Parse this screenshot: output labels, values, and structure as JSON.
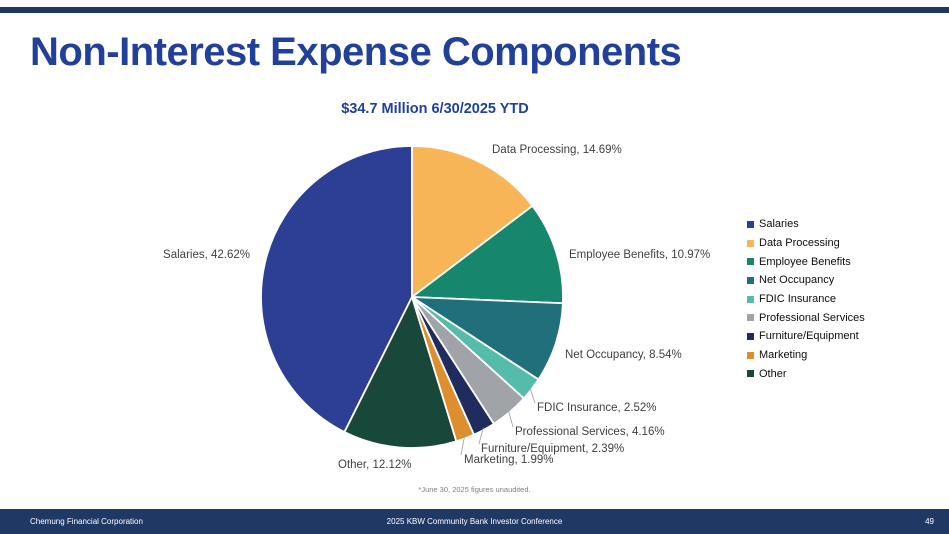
{
  "slide": {
    "title": "Non-Interest Expense Components",
    "subtitle": "$34.7 Million 6/30/2025 YTD",
    "footnote": "*June 30, 2025 figures unaudited.",
    "footer": {
      "left": "Chemung Financial Corporation",
      "center": "2025 KBW Community Bank Investor Conference",
      "page_number": "49"
    },
    "colors": {
      "accent_blue": "#21409A",
      "bar_navy": "#1F3864"
    }
  },
  "chart_data": {
    "type": "pie",
    "title": "$34.7 Million 6/30/2025 YTD",
    "units": "percent",
    "start_angle_deg": 206.57,
    "direction": "clockwise",
    "legend_position": "right",
    "label_format": "{name}, {value}%",
    "slices": [
      {
        "name": "Salaries",
        "value": 42.62,
        "color": "#2C3F94"
      },
      {
        "name": "Data Processing",
        "value": 14.69,
        "color": "#F7B557"
      },
      {
        "name": "Employee Benefits",
        "value": 10.97,
        "color": "#16866C"
      },
      {
        "name": "Net Occupancy",
        "value": 8.54,
        "color": "#20707B"
      },
      {
        "name": "FDIC Insurance",
        "value": 2.52,
        "color": "#55BCAB"
      },
      {
        "name": "Professional Services",
        "value": 4.16,
        "color": "#A0A4A8"
      },
      {
        "name": "Furniture/Equipment",
        "value": 2.39,
        "color": "#202C5E"
      },
      {
        "name": "Marketing",
        "value": 1.99,
        "color": "#DE8F2D"
      },
      {
        "name": "Other",
        "value": 12.12,
        "color": "#174839"
      }
    ]
  }
}
